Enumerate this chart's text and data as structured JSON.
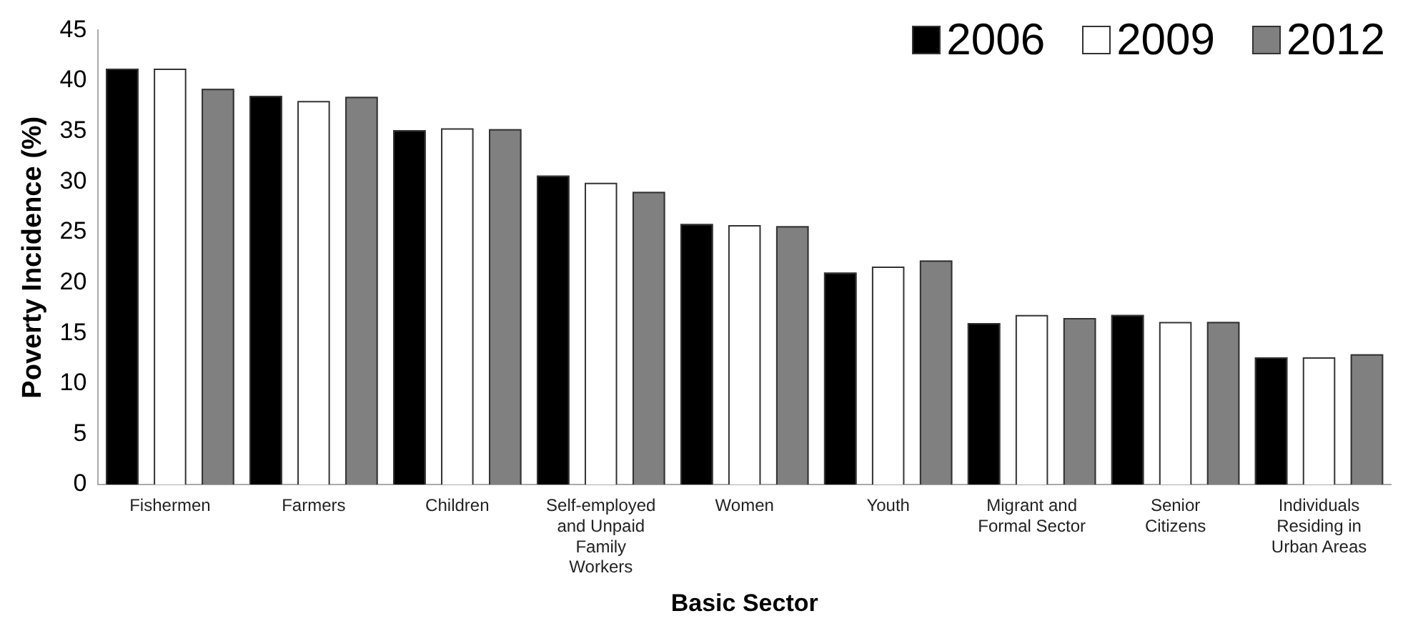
{
  "chart_data": {
    "type": "bar",
    "xlabel": "Basic Sector",
    "ylabel": "Poverty Incidence (%)",
    "categories": [
      "Fishermen",
      "Farmers",
      "Children",
      "Self-employed and Unpaid Family Workers",
      "Women",
      "Youth",
      "Migrant and Formal Sector",
      "Senior Citizens",
      "Individuals Residing in Urban Areas"
    ],
    "series": [
      {
        "name": "2006",
        "color": "#000000",
        "values": [
          41.2,
          38.5,
          35.1,
          30.6,
          25.8,
          21.0,
          16.0,
          16.8,
          12.6
        ]
      },
      {
        "name": "2009",
        "color": "#ffffff",
        "values": [
          41.2,
          38.0,
          35.3,
          29.9,
          25.7,
          21.6,
          16.8,
          16.1,
          12.6
        ]
      },
      {
        "name": "2012",
        "color": "#808080",
        "values": [
          39.2,
          38.4,
          35.2,
          29.0,
          25.6,
          22.2,
          16.5,
          16.1,
          12.9
        ]
      }
    ],
    "ylim": [
      0,
      45
    ],
    "yticks": [
      0,
      5,
      10,
      15,
      20,
      25,
      30,
      35,
      40,
      45
    ],
    "grid": false,
    "legend": "top right"
  }
}
